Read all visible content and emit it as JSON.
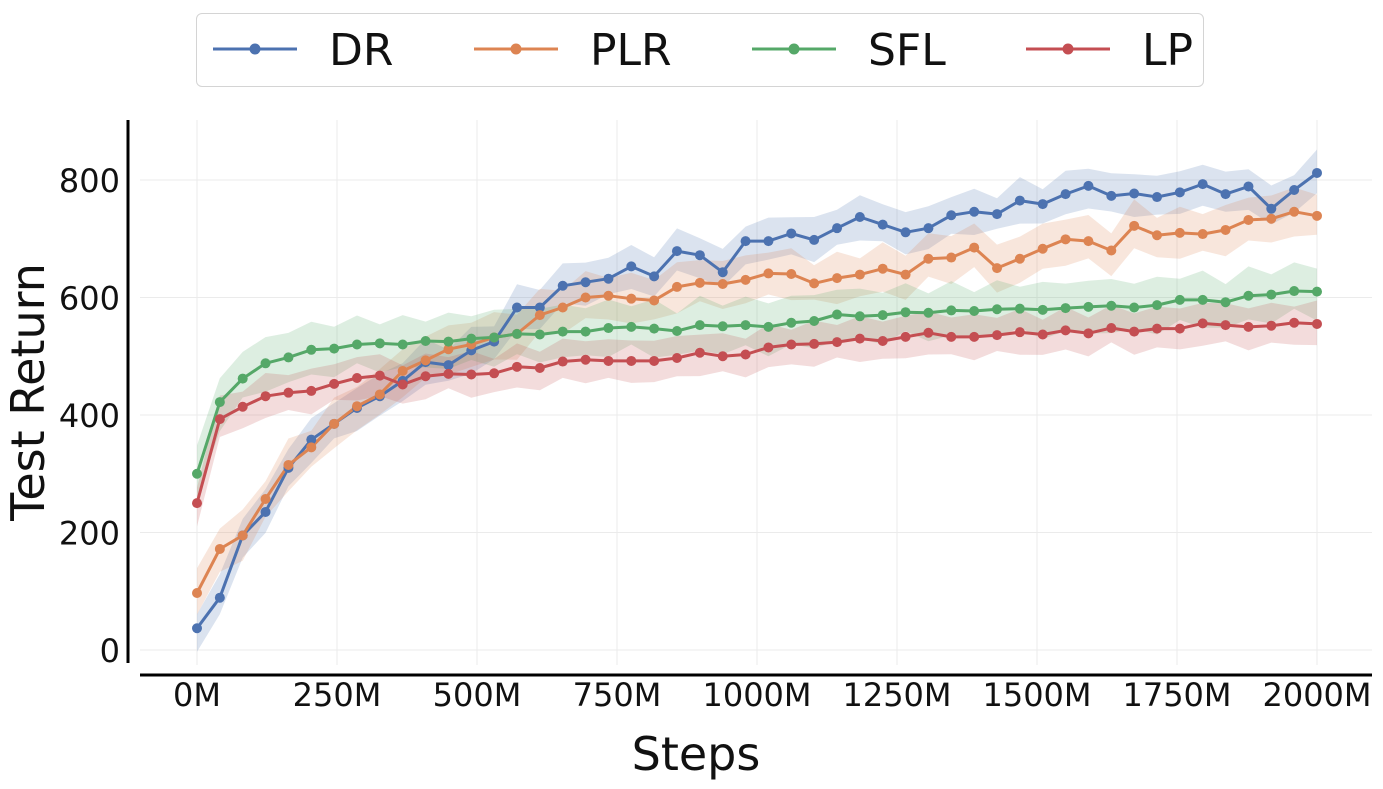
{
  "chart_data": {
    "type": "line",
    "xlabel": "Steps",
    "ylabel": "Test Return",
    "xlim": [
      -100,
      2000
    ],
    "ylim": [
      -45,
      900
    ],
    "grid": true,
    "legend_position": "top-center",
    "x_ticks": [
      0,
      250,
      500,
      750,
      1000,
      1250,
      1500,
      1750,
      2000
    ],
    "x_tick_labels": [
      "0M",
      "250M",
      "500M",
      "750M",
      "1000M",
      "1250M",
      "1500M",
      "1750M",
      "2000M"
    ],
    "y_ticks": [
      0,
      200,
      400,
      600,
      800
    ],
    "y_tick_labels": [
      "0",
      "200",
      "400",
      "600",
      "800"
    ],
    "x": [
      0,
      40.8,
      81.6,
      122.4,
      163.3,
      204.1,
      244.9,
      285.7,
      326.5,
      367.3,
      408.2,
      449,
      489.8,
      530.6,
      571.4,
      612.2,
      653.1,
      693.9,
      734.7,
      775.5,
      816.3,
      857.1,
      898,
      938.8,
      979.6,
      1020.4,
      1061.2,
      1102,
      1142.9,
      1183.7,
      1224.5,
      1265.3,
      1306.1,
      1346.9,
      1387.8,
      1428.6,
      1469.4,
      1510.2,
      1551,
      1591.8,
      1632.7,
      1673.5,
      1714.3,
      1755.1,
      1795.9,
      1836.7,
      1877.6,
      1918.4,
      1959.2,
      2000
    ],
    "series": [
      {
        "name": "DR",
        "color": "#4c72b0",
        "values": [
          37,
          89,
          195,
          235,
          310,
          358,
          385,
          412,
          432,
          458,
          490,
          485,
          510,
          525,
          583,
          583,
          620,
          626,
          632,
          653,
          636,
          679,
          672,
          643,
          696,
          696,
          709,
          698,
          718,
          737,
          724,
          711,
          718,
          740,
          746,
          742,
          765,
          759,
          776,
          790,
          773,
          777,
          771,
          779,
          793,
          776,
          789,
          751,
          783,
          812
        ],
        "band": 40
      },
      {
        "name": "PLR",
        "color": "#dd8452",
        "values": [
          97,
          172,
          195,
          257,
          315,
          345,
          385,
          415,
          435,
          475,
          493,
          512,
          520,
          532,
          538,
          570,
          583,
          600,
          603,
          598,
          595,
          618,
          625,
          623,
          630,
          641,
          640,
          624,
          633,
          639,
          649,
          639,
          666,
          668,
          685,
          650,
          666,
          683,
          699,
          696,
          680,
          722,
          706,
          710,
          708,
          715,
          732,
          734,
          746,
          739
        ],
        "band": 45
      },
      {
        "name": "SFL",
        "color": "#55a868",
        "values": [
          300,
          422,
          462,
          488,
          498,
          511,
          513,
          520,
          522,
          520,
          526,
          525,
          530,
          532,
          538,
          537,
          542,
          542,
          548,
          550,
          547,
          543,
          553,
          551,
          553,
          550,
          557,
          560,
          571,
          568,
          570,
          575,
          574,
          578,
          577,
          580,
          581,
          579,
          582,
          584,
          586,
          583,
          587,
          596,
          596,
          592,
          603,
          605,
          611,
          610
        ],
        "band": 50
      },
      {
        "name": "LP",
        "color": "#c44e52",
        "values": [
          250,
          393,
          414,
          432,
          438,
          441,
          453,
          463,
          467,
          452,
          466,
          470,
          469,
          471,
          482,
          480,
          491,
          494,
          492,
          492,
          492,
          497,
          506,
          500,
          503,
          515,
          520,
          521,
          524,
          530,
          526,
          533,
          540,
          533,
          533,
          536,
          541,
          537,
          544,
          539,
          548,
          542,
          547,
          547,
          556,
          553,
          550,
          552,
          557,
          555
        ],
        "band": 40
      }
    ]
  }
}
